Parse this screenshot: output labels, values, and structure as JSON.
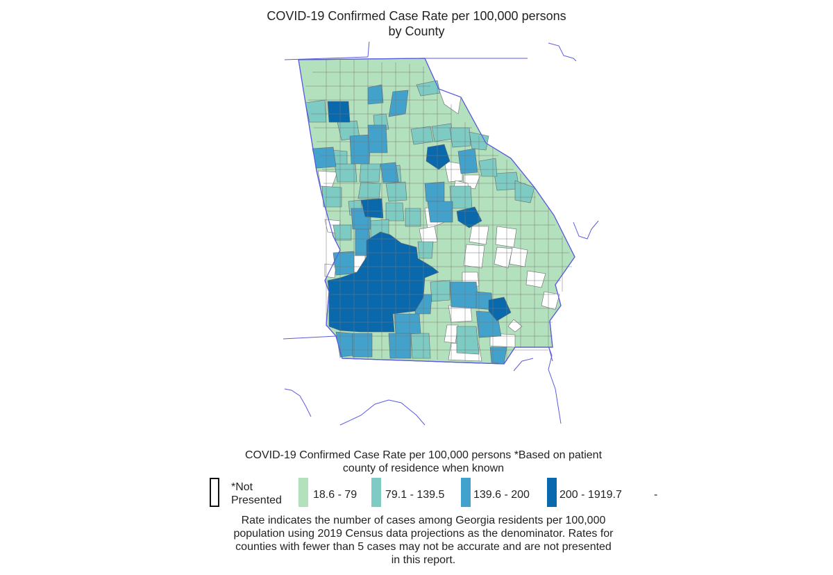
{
  "title": {
    "line1": "COVID-19 Confirmed Case Rate per 100,000 persons",
    "line2": "by County"
  },
  "legend": {
    "title_line1": "COVID-19 Confirmed Case Rate per 100,000 persons *Based on patient",
    "title_line2": "county of residence when known",
    "items": [
      {
        "label_line1": "*Not",
        "label_line2": "Presented",
        "color": "#ffffff"
      },
      {
        "label": "18.6 - 79",
        "color": "#b3e0bd"
      },
      {
        "label": "79.1 - 139.5",
        "color": "#7dcbc3"
      },
      {
        "label": "139.6 - 200",
        "color": "#43a2cc"
      },
      {
        "label": "200 - 1919.7",
        "color": "#0a68ad"
      }
    ],
    "trailing": "-"
  },
  "footnote": {
    "line1": "Rate indicates the number of cases among Georgia residents per 100,000",
    "line2": "population using 2019 Census data projections as the denominator. Rates for",
    "line3": "counties with fewer than 5 cases may not be accurate and are not presented",
    "line4": "in this report."
  },
  "colors": {
    "boundary": "#5a5ae0",
    "county_border": "#555555"
  }
}
